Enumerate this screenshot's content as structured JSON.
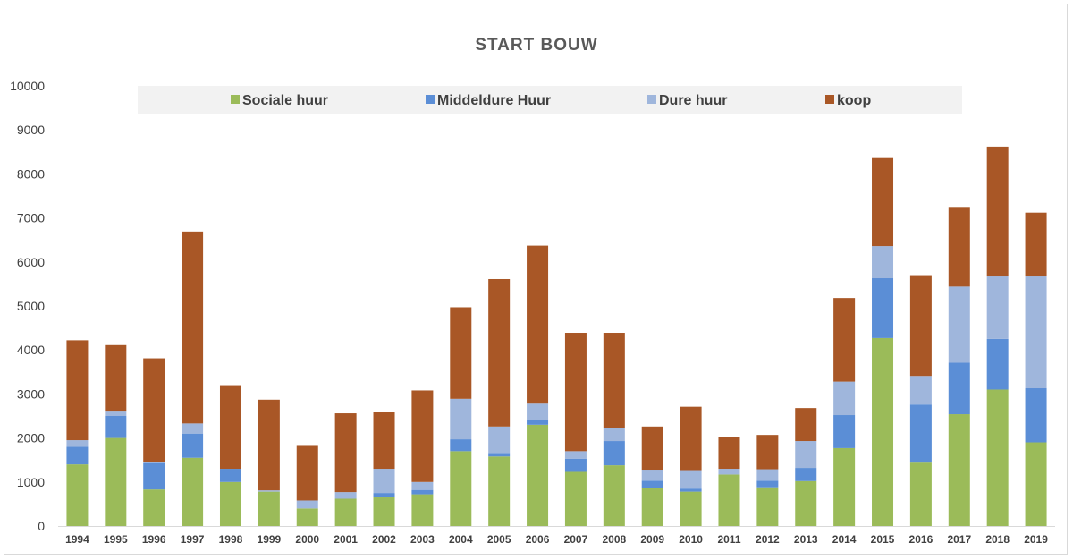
{
  "chart_data": {
    "type": "bar",
    "stacked": true,
    "title": "START BOUW",
    "xlabel": "",
    "ylabel": "",
    "ylim": [
      0,
      10000
    ],
    "yticks": [
      0,
      1000,
      2000,
      3000,
      4000,
      5000,
      6000,
      7000,
      8000,
      9000,
      10000
    ],
    "grid": false,
    "legend_position": "top",
    "categories": [
      "1994",
      "1995",
      "1996",
      "1997",
      "1998",
      "1999",
      "2000",
      "2001",
      "2002",
      "2003",
      "2004",
      "2005",
      "2006",
      "2007",
      "2008",
      "2009",
      "2010",
      "2011",
      "2012",
      "2013",
      "2014",
      "2015",
      "2016",
      "2017",
      "2018",
      "2019"
    ],
    "series": [
      {
        "name": "Sociale  huur",
        "color": "#9bbb59",
        "values": [
          1400,
          2000,
          830,
          1550,
          1000,
          780,
          400,
          620,
          650,
          720,
          1700,
          1580,
          2300,
          1230,
          1380,
          860,
          780,
          1170,
          880,
          1020,
          1770,
          4270,
          1440,
          2540,
          3100,
          1900
        ]
      },
      {
        "name": "Middeldure Huur",
        "color": "#5b8ed6",
        "values": [
          400,
          500,
          600,
          550,
          300,
          0,
          0,
          0,
          100,
          100,
          270,
          80,
          100,
          300,
          550,
          170,
          70,
          0,
          150,
          300,
          750,
          1360,
          1320,
          1170,
          1150,
          1230
        ]
      },
      {
        "name": "Dure  huur",
        "color": "#9fb6dc",
        "values": [
          150,
          120,
          30,
          230,
          0,
          30,
          180,
          150,
          550,
          180,
          920,
          600,
          380,
          170,
          300,
          250,
          420,
          130,
          260,
          610,
          760,
          730,
          650,
          1730,
          1420,
          2540
        ]
      },
      {
        "name": "koop",
        "color": "#a95726",
        "values": [
          2270,
          1490,
          2350,
          4360,
          1900,
          2060,
          1240,
          1790,
          1290,
          2080,
          2080,
          3350,
          3590,
          2690,
          2160,
          980,
          1440,
          730,
          780,
          750,
          1900,
          2000,
          2290,
          1810,
          2950,
          1450
        ]
      }
    ]
  }
}
